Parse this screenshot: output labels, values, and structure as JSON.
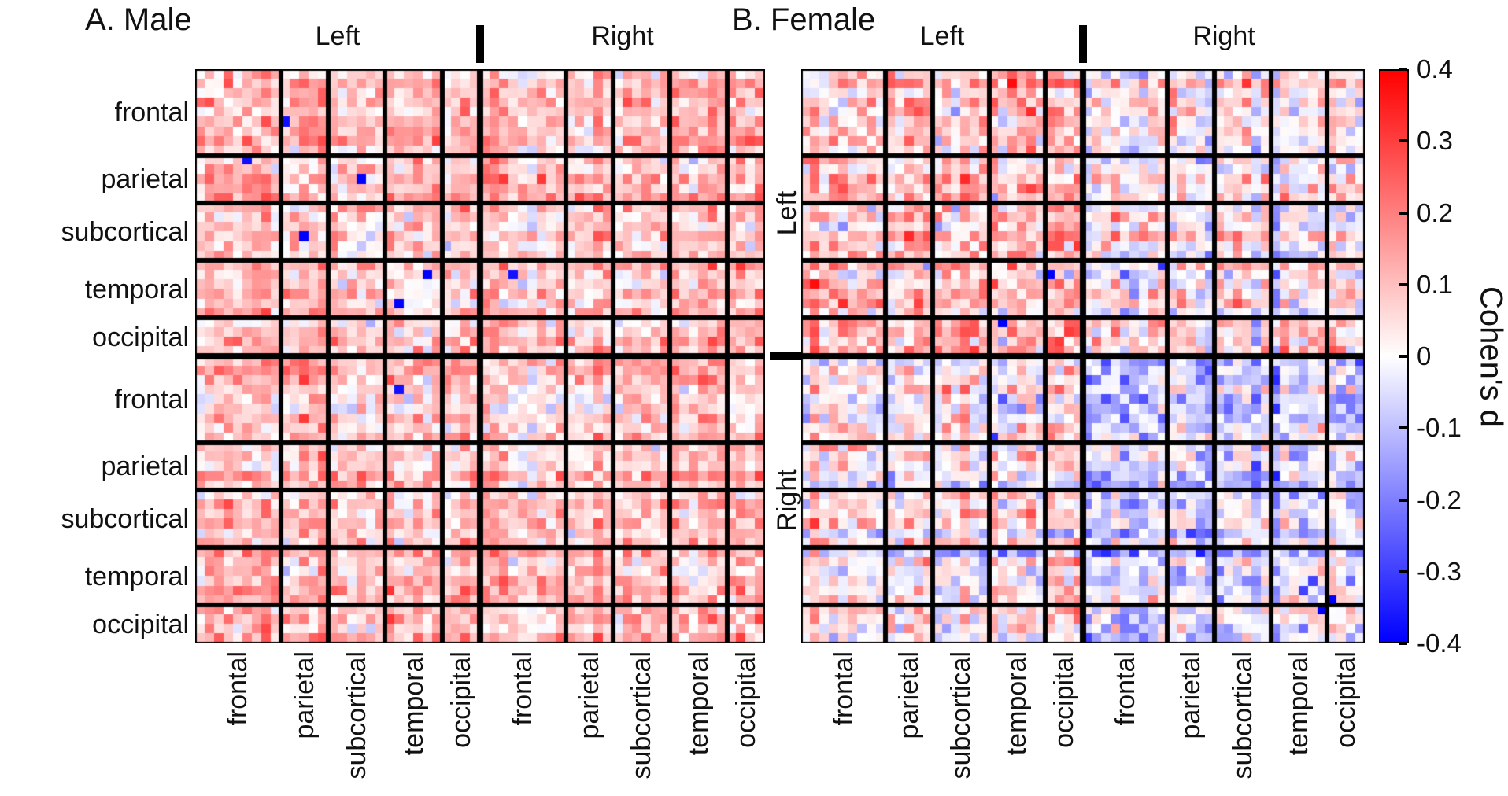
{
  "figure": {
    "background": "#ffffff",
    "panels": [
      {
        "title": "A. Male"
      },
      {
        "title": "B. Female"
      }
    ],
    "hemisphere_labels": {
      "top": [
        "Left",
        "Right"
      ],
      "side": [
        "Left",
        "Right"
      ]
    },
    "region_groups": [
      {
        "label": "frontal",
        "cells": 9
      },
      {
        "label": "parietal",
        "cells": 5
      },
      {
        "label": "subcortical",
        "cells": 6
      },
      {
        "label": "temporal",
        "cells": 6
      },
      {
        "label": "occipital",
        "cells": 4
      }
    ],
    "colorbar": {
      "label": "Cohen's d",
      "ticks": [
        "0.4",
        "0.3",
        "0.2",
        "0.1",
        "0",
        "-0.1",
        "-0.2",
        "-0.3",
        "-0.4"
      ],
      "max_color": "#ff0000",
      "zero_color": "#ffffff",
      "min_color": "#0000ff"
    }
  },
  "chart_data": {
    "type": "heatmap",
    "panels": [
      {
        "title": "A. Male",
        "qualitative_pattern": "predominantly positive (red) correlations, typical Cohen's d ~0.05 to 0.3, sparse near-zero/blue cells, white main diagonal",
        "render_params": {
          "seed": 101,
          "base": 0.11,
          "left_bias": 0.0,
          "right_bias": 0.0,
          "band_spread": 0.1,
          "block_spread": 0.06,
          "noise": 0.13,
          "neg_outlier_p": 0.004
        }
      },
      {
        "title": "B. Female",
        "qualitative_pattern": "mixed positive/negative values near zero; left-hemisphere rows/columns skew red (positive), right-hemisphere skew blue (negative); white main diagonal",
        "render_params": {
          "seed": 202,
          "base": 0.015,
          "left_bias": 0.045,
          "right_bias": -0.045,
          "band_spread": 0.14,
          "block_spread": 0.07,
          "noise": 0.16,
          "neg_outlier_p": 0.002
        }
      }
    ],
    "rows": {
      "hemispheres": [
        "Left",
        "Right"
      ],
      "lobes": [
        "frontal",
        "parietal",
        "subcortical",
        "temporal",
        "occipital"
      ],
      "cells_per_lobe": [
        9,
        5,
        6,
        6,
        4
      ],
      "total_rows": 60
    },
    "columns": "identical to rows (symmetric region-by-region matrix)",
    "value_range": [
      -0.4,
      0.4
    ],
    "colorbar_ticks_values": [
      0.4,
      0.3,
      0.2,
      0.1,
      0,
      -0.1,
      -0.2,
      -0.3,
      -0.4
    ],
    "colormap": "blue-white-red",
    "colorbar_label": "Cohen's d",
    "grid": "thick black lines separate lobe blocks; slightly thicker line at hemisphere boundary",
    "note": "individual cell values are not legible at screenshot resolution; cells are rendered procedurally from render_params to match the depicted qualitative pattern"
  }
}
